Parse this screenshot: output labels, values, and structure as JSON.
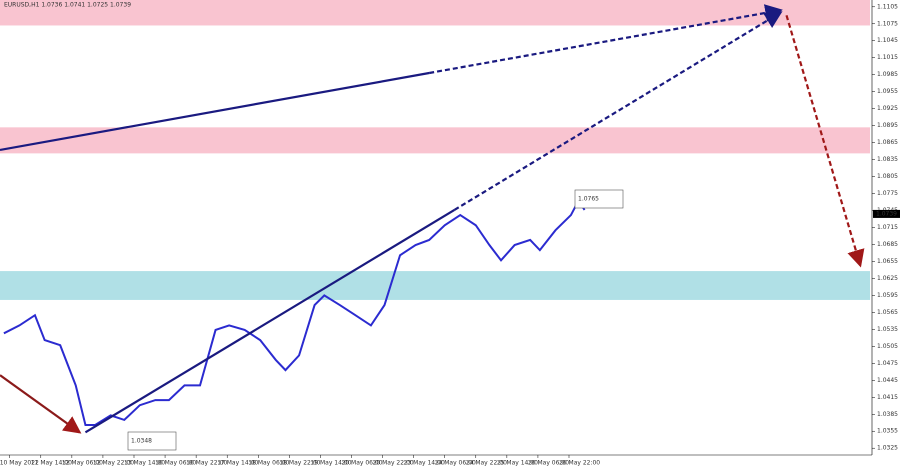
{
  "chart_data": {
    "type": "line",
    "title": "EURUSD,H1 1.0736 1.0741 1.0725 1.0739",
    "x": [
      -3,
      5,
      13,
      18,
      26,
      34,
      39,
      44,
      52,
      59,
      67,
      75,
      82,
      90,
      98,
      106,
      113,
      121,
      129,
      137,
      142,
      149,
      157,
      162,
      170,
      178,
      186,
      193,
      201,
      209,
      216,
      224,
      232,
      240,
      247,
      253,
      260,
      268,
      273,
      281,
      289,
      293,
      296
    ],
    "series": [
      {
        "name": "EURUSD",
        "color": "#2b2bd0",
        "values": [
          1.0528,
          1.0542,
          1.056,
          1.0516,
          1.0507,
          1.0436,
          1.0366,
          1.0366,
          1.0383,
          1.0375,
          1.0401,
          1.041,
          1.041,
          1.0436,
          1.0436,
          1.0534,
          1.0542,
          1.0534,
          1.0516,
          1.0481,
          1.0463,
          1.0489,
          1.0578,
          1.0595,
          1.0578,
          1.056,
          1.0542,
          1.0578,
          1.0666,
          1.0684,
          1.0693,
          1.0719,
          1.0737,
          1.0719,
          1.0684,
          1.0657,
          1.0684,
          1.0693,
          1.0675,
          1.071,
          1.0737,
          1.0763,
          1.0746
        ]
      }
    ],
    "xlim": [
      -5,
      443
    ],
    "xticks": [
      {
        "value": 0,
        "label": "10 May 2022"
      },
      {
        "value": 16,
        "label": "11 May 14:00"
      },
      {
        "value": 32,
        "label": "12 May 06:00"
      },
      {
        "value": 48,
        "label": "12 May 22:00"
      },
      {
        "value": 64,
        "label": "13 May 14:00"
      },
      {
        "value": 80,
        "label": "16 May 06:00"
      },
      {
        "value": 96,
        "label": "16 May 22:00"
      },
      {
        "value": 112,
        "label": "17 May 14:00"
      },
      {
        "value": 128,
        "label": "18 May 06:00"
      },
      {
        "value": 144,
        "label": "18 May 22:00"
      },
      {
        "value": 160,
        "label": "19 May 14:00"
      },
      {
        "value": 176,
        "label": "20 May 06:00"
      },
      {
        "value": 192,
        "label": "20 May 22:00"
      },
      {
        "value": 208,
        "label": "23 May 14:00"
      },
      {
        "value": 224,
        "label": "24 May 06:00"
      },
      {
        "value": 240,
        "label": "24 May 22:00"
      },
      {
        "value": 256,
        "label": "25 May 14:00"
      },
      {
        "value": 272,
        "label": "26 May 06:00"
      },
      {
        "value": 288,
        "label": "26 May 22:00"
      }
    ],
    "ylim": [
      1.0313,
      1.1117
    ],
    "yticks": [
      1.1105,
      1.1075,
      1.1045,
      1.1015,
      1.0985,
      1.0955,
      1.0925,
      1.0895,
      1.0865,
      1.0835,
      1.0805,
      1.0775,
      1.0745,
      1.0715,
      1.0685,
      1.0655,
      1.0625,
      1.0595,
      1.0565,
      1.0535,
      1.0505,
      1.0475,
      1.0445,
      1.0415,
      1.0385,
      1.0355,
      1.0325
    ],
    "zones": [
      {
        "from": 1.1072,
        "to": 1.1117,
        "color": "#f9c4d0"
      },
      {
        "from": 1.0846,
        "to": 1.0892,
        "color": "#f9c4d0"
      },
      {
        "from": 1.0587,
        "to": 1.0638,
        "color": "#b0e0e6"
      }
    ],
    "lines": [
      {
        "x": [
          -5,
          216
        ],
        "values": [
          1.0852,
          1.0988
        ],
        "color": "#1a1a80",
        "dashed": false
      },
      {
        "x": [
          216,
          397
        ],
        "values": [
          1.0988,
          1.1099
        ],
        "color": "#1a1a80",
        "dashed": true
      },
      {
        "x": [
          39,
          229
        ],
        "values": [
          1.0353,
          1.0746
        ],
        "color": "#1a1a80",
        "dashed": false
      },
      {
        "x": [
          229,
          397
        ],
        "values": [
          1.0746,
          1.1095
        ],
        "color": "#1a1a80",
        "dashed": true
      },
      {
        "x": [
          -5,
          36
        ],
        "values": [
          1.0454,
          1.0353
        ],
        "color": "#8b1a1a",
        "dashed": false
      },
      {
        "x": [
          400,
          438
        ],
        "values": [
          1.109,
          1.0648
        ],
        "color": "#a01818",
        "dashed": true
      }
    ],
    "annotations": [
      "1.0765",
      "1.0348"
    ],
    "last_price": 1.0739
  }
}
